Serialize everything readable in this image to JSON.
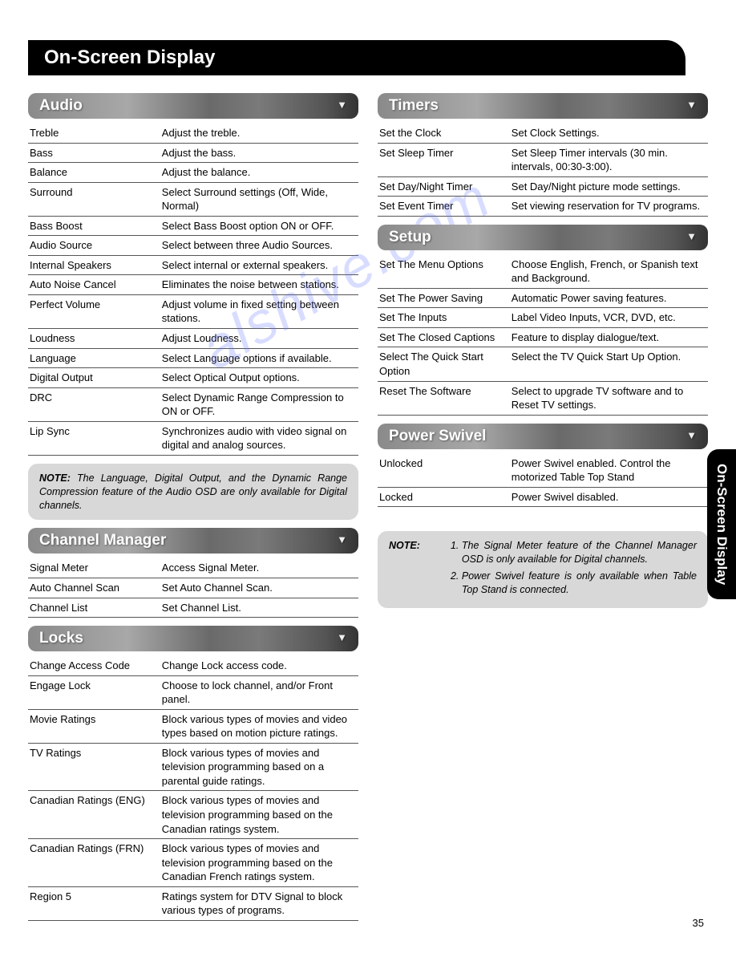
{
  "header": "On-Screen Display",
  "side_tab": "On-Screen Display",
  "page_number": "35",
  "watermark": "alshive.com",
  "sections": {
    "audio": {
      "title": "Audio",
      "rows": [
        [
          "Treble",
          "Adjust the treble."
        ],
        [
          "Bass",
          "Adjust the bass."
        ],
        [
          "Balance",
          "Adjust the balance."
        ],
        [
          "Surround",
          "Select Surround settings (Off, Wide, Normal)"
        ],
        [
          "Bass Boost",
          "Select Bass Boost option ON or OFF."
        ],
        [
          "Audio Source",
          "Select between three Audio Sources."
        ],
        [
          "Internal Speakers",
          "Select internal or external speakers."
        ],
        [
          "Auto Noise Cancel",
          "Eliminates the noise between stations."
        ],
        [
          "Perfect Volume",
          "Adjust volume in fixed setting between stations."
        ],
        [
          "Loudness",
          "Adjust Loudness."
        ],
        [
          "Language",
          "Select Language options if available."
        ],
        [
          "Digital Output",
          "Select Optical Output options."
        ],
        [
          "DRC",
          "Select Dynamic Range Compression to ON or OFF."
        ],
        [
          "Lip Sync",
          "Synchronizes audio with video signal on digital and analog sources."
        ]
      ]
    },
    "audio_note": "The Language, Digital Output, and the Dynamic Range Compression feature of the Audio OSD are only available for Digital channels.",
    "channel_manager": {
      "title": "Channel Manager",
      "rows": [
        [
          "Signal Meter",
          "Access Signal Meter."
        ],
        [
          "Auto Channel Scan",
          "Set Auto Channel Scan."
        ],
        [
          "Channel List",
          "Set Channel List."
        ]
      ]
    },
    "locks": {
      "title": "Locks",
      "rows": [
        [
          "Change Access Code",
          "Change Lock access code."
        ],
        [
          "Engage Lock",
          "Choose to lock channel, and/or Front panel."
        ],
        [
          "Movie Ratings",
          "Block various types of movies and video types based on motion picture ratings."
        ],
        [
          "TV Ratings",
          "Block various types of movies and television programming based on a parental guide ratings."
        ],
        [
          "Canadian Ratings (ENG)",
          "Block various types of movies and television programming based on the Canadian ratings system."
        ],
        [
          "Canadian Ratings (FRN)",
          "Block various types of movies and television programming based on the Canadian French ratings system."
        ],
        [
          "Region 5",
          "Ratings system for DTV Signal to block various types of programs."
        ]
      ]
    },
    "timers": {
      "title": "Timers",
      "rows": [
        [
          "Set the Clock",
          "Set Clock Settings."
        ],
        [
          "Set Sleep Timer",
          "Set Sleep Timer intervals (30 min. intervals, 00:30-3:00)."
        ],
        [
          "Set Day/Night Timer",
          "Set Day/Night picture mode settings."
        ],
        [
          "Set Event Timer",
          "Set viewing reservation for TV programs."
        ]
      ]
    },
    "setup": {
      "title": "Setup",
      "rows": [
        [
          "Set The Menu Options",
          "Choose English, French, or Spanish text and Background."
        ],
        [
          "Set The Power Saving",
          "Automatic Power saving features."
        ],
        [
          "Set The Inputs",
          "Label Video Inputs, VCR, DVD, etc."
        ],
        [
          "Set The Closed Captions",
          "Feature to display dialogue/text."
        ],
        [
          "Select The Quick Start Option",
          "Select the TV Quick Start Up Option."
        ],
        [
          "Reset The Software",
          "Select to upgrade TV software and to Reset TV settings."
        ]
      ]
    },
    "power_swivel": {
      "title": "Power Swivel",
      "rows": [
        [
          "Unlocked",
          "Power Swivel enabled. Control the motorized Table Top Stand"
        ],
        [
          "Locked",
          "Power Swivel disabled."
        ]
      ]
    },
    "right_note": {
      "label": "NOTE:",
      "items": [
        "The Signal Meter feature of the Channel Manager OSD is only available for Digital channels.",
        "Power Swivel feature is only available when Table Top Stand is connected."
      ]
    },
    "note_label": "NOTE:"
  }
}
